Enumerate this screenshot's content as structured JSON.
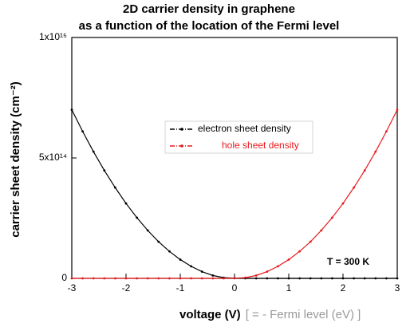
{
  "chart_data": {
    "type": "line",
    "title": [
      "2D carrier density in graphene",
      "as a function of the location of the Fermi level"
    ],
    "x_label": "voltage (V)",
    "x_label_note": "[ = - Fermi level (eV) ]",
    "y_label": "carrier sheet density (cm⁻²)",
    "annotation": "T = 300 K",
    "x": [
      -3,
      -2.8,
      -2.6,
      -2.4,
      -2.2,
      -2,
      -1.8,
      -1.6,
      -1.4,
      -1.2,
      -1,
      -0.8,
      -0.6,
      -0.4,
      -0.2,
      0,
      0.2,
      0.4,
      0.6,
      0.8,
      1,
      1.2,
      1.4,
      1.6,
      1.8,
      2,
      2.2,
      2.4,
      2.6,
      2.8,
      3
    ],
    "series": [
      {
        "name": "electron sheet density",
        "color": "#000000",
        "values": [
          700000000000000.0,
          610000000000000.0,
          526000000000000.0,
          448000000000000.0,
          377000000000000.0,
          311000000000000.0,
          252000000000000.0,
          199000000000000.0,
          152000000000000.0,
          112000000000000.0,
          78000000000000.0,
          50000000000000.0,
          28000000000000.0,
          12000000000000.0,
          3000000000000.0,
          1000000000000.0,
          0,
          0,
          0,
          0,
          0,
          0,
          0,
          0,
          0,
          0,
          0,
          0,
          0,
          0,
          0
        ]
      },
      {
        "name": "hole sheet density",
        "color": "#e8191c",
        "values": [
          0,
          0,
          0,
          0,
          0,
          0,
          0,
          0,
          0,
          0,
          0,
          0,
          0,
          0,
          0,
          1000000000000.0,
          3000000000000.0,
          12000000000000.0,
          28000000000000.0,
          50000000000000.0,
          78000000000000.0,
          112000000000000.0,
          152000000000000.0,
          199000000000000.0,
          252000000000000.0,
          311000000000000.0,
          377000000000000.0,
          448000000000000.0,
          526000000000000.0,
          610000000000000.0,
          700000000000000.0
        ]
      }
    ],
    "xlim": [
      -3,
      3
    ],
    "xticks": [
      -3,
      -2,
      -1,
      0,
      1,
      2,
      3
    ],
    "ylim": [
      0,
      1000000000000000.0
    ],
    "yticks": [
      0,
      {
        "value": 500000000000000.0,
        "label": "5x10¹⁴"
      },
      {
        "value": 1000000000000000.0,
        "label": "1x10¹⁵"
      }
    ],
    "grid": false
  }
}
